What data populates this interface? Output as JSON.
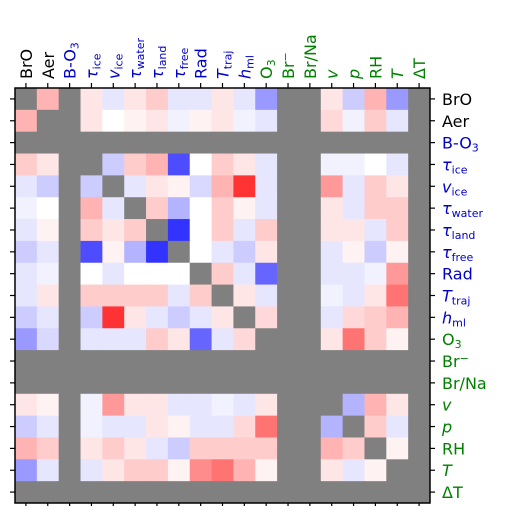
{
  "chart_data": {
    "type": "heatmap",
    "title": "",
    "labels": [
      {
        "text": "BrO",
        "sub": "",
        "color": "#000000"
      },
      {
        "text": "Aer",
        "sub": "",
        "color": "#000000"
      },
      {
        "text": "B-O",
        "sub": "3",
        "color": "#0000cc"
      },
      {
        "text": "τ",
        "sub": "ice",
        "color": "#0000cc"
      },
      {
        "text": "v",
        "sub": "ice",
        "color": "#0000cc"
      },
      {
        "text": "τ",
        "sub": "water",
        "color": "#0000cc"
      },
      {
        "text": "τ",
        "sub": "land",
        "color": "#0000cc"
      },
      {
        "text": "τ",
        "sub": "free",
        "color": "#0000cc"
      },
      {
        "text": "Rad",
        "sub": "",
        "color": "#0000cc"
      },
      {
        "text": "T",
        "sub": "traj",
        "color": "#0000cc"
      },
      {
        "text": "h",
        "sub": "ml",
        "color": "#0000cc"
      },
      {
        "text": "O",
        "sub": "3",
        "color": "#008000"
      },
      {
        "text": "Br",
        "sub": "−",
        "color": "#008000"
      },
      {
        "text": "Br/Na",
        "sub": "",
        "color": "#008000"
      },
      {
        "text": "v",
        "sub": "",
        "color": "#008000"
      },
      {
        "text": "p",
        "sub": "",
        "color": "#008000"
      },
      {
        "text": "RH",
        "sub": "",
        "color": "#008000"
      },
      {
        "text": "T",
        "sub": "",
        "color": "#008000"
      },
      {
        "text": "ΔT",
        "sub": "",
        "color": "#008000"
      }
    ],
    "color_scale": {
      "min": -1,
      "max": 1,
      "negative": "#0000ff",
      "zero": "#ffffff",
      "positive": "#ff0000",
      "missing": "#808080"
    },
    "matrix": [
      [
        null,
        0.3,
        null,
        0.1,
        -0.1,
        0.1,
        0.2,
        -0.1,
        -0.1,
        0.1,
        -0.1,
        -0.4,
        null,
        null,
        0.1,
        -0.2,
        0.3,
        -0.4,
        null
      ],
      [
        0.3,
        null,
        null,
        0.1,
        0.0,
        0.05,
        0.1,
        -0.05,
        0.05,
        0.1,
        -0.05,
        -0.1,
        null,
        null,
        0.15,
        -0.05,
        0.2,
        -0.1,
        null
      ],
      [
        null,
        null,
        null,
        null,
        null,
        null,
        null,
        null,
        null,
        null,
        null,
        null,
        null,
        null,
        null,
        null,
        null,
        null,
        null
      ],
      [
        0.2,
        0.1,
        null,
        null,
        -0.2,
        0.2,
        0.3,
        -0.7,
        0.0,
        0.2,
        0.1,
        -0.1,
        null,
        null,
        -0.05,
        -0.05,
        0.0,
        -0.1,
        null
      ],
      [
        -0.1,
        -0.2,
        null,
        -0.2,
        null,
        -0.1,
        0.1,
        0.05,
        -0.15,
        0.3,
        0.8,
        -0.1,
        null,
        null,
        0.4,
        -0.1,
        0.2,
        0.1,
        null
      ],
      [
        -0.05,
        0.0,
        null,
        0.3,
        -0.1,
        null,
        0.2,
        -0.3,
        0.0,
        0.2,
        0.05,
        -0.1,
        null,
        null,
        0.1,
        -0.1,
        0.2,
        0.2,
        null
      ],
      [
        -0.1,
        0.05,
        null,
        0.2,
        0.1,
        0.2,
        null,
        -0.8,
        0.0,
        0.2,
        -0.1,
        0.2,
        null,
        null,
        0.1,
        0.1,
        -0.1,
        0.2,
        null
      ],
      [
        -0.2,
        -0.1,
        null,
        -0.7,
        0.05,
        -0.3,
        -0.8,
        null,
        0.0,
        -0.1,
        -0.2,
        0.1,
        null,
        null,
        -0.1,
        0.05,
        -0.2,
        0.05,
        null
      ],
      [
        -0.1,
        -0.05,
        null,
        0.0,
        -0.1,
        0.0,
        0.0,
        0.0,
        null,
        0.2,
        -0.1,
        -0.6,
        null,
        null,
        -0.1,
        -0.1,
        -0.05,
        0.4,
        null
      ],
      [
        -0.1,
        0.1,
        null,
        0.2,
        0.2,
        0.2,
        0.2,
        -0.1,
        0.2,
        null,
        0.1,
        -0.1,
        null,
        null,
        -0.05,
        -0.1,
        0.1,
        0.55,
        null
      ],
      [
        -0.2,
        -0.1,
        null,
        -0.2,
        0.8,
        0.1,
        -0.1,
        -0.2,
        -0.1,
        0.1,
        null,
        0.15,
        null,
        null,
        -0.1,
        0.15,
        0.2,
        0.3,
        null
      ],
      [
        -0.4,
        -0.15,
        null,
        -0.1,
        -0.1,
        -0.1,
        0.2,
        0.1,
        -0.6,
        -0.1,
        0.15,
        null,
        null,
        null,
        0.1,
        0.55,
        0.2,
        0.05,
        null
      ],
      [
        null,
        null,
        null,
        null,
        null,
        null,
        null,
        null,
        null,
        null,
        null,
        null,
        null,
        null,
        null,
        null,
        null,
        null,
        null
      ],
      [
        null,
        null,
        null,
        null,
        null,
        null,
        null,
        null,
        null,
        null,
        null,
        null,
        null,
        null,
        null,
        null,
        null,
        null,
        null
      ],
      [
        0.1,
        0.05,
        null,
        -0.05,
        0.4,
        0.1,
        0.1,
        -0.1,
        -0.1,
        -0.05,
        -0.1,
        0.1,
        null,
        null,
        null,
        -0.3,
        0.3,
        0.1,
        null
      ],
      [
        -0.2,
        -0.1,
        null,
        -0.05,
        -0.1,
        -0.1,
        0.1,
        0.05,
        -0.1,
        -0.1,
        0.15,
        0.55,
        null,
        null,
        -0.3,
        null,
        0.2,
        -0.1,
        null
      ],
      [
        0.3,
        0.2,
        null,
        0.1,
        0.2,
        0.1,
        -0.1,
        -0.2,
        0.2,
        0.2,
        0.2,
        0.2,
        null,
        null,
        0.3,
        0.2,
        null,
        0.05,
        null
      ],
      [
        -0.4,
        -0.1,
        null,
        -0.1,
        0.1,
        0.2,
        0.2,
        0.05,
        0.45,
        0.55,
        0.3,
        0.05,
        null,
        null,
        0.1,
        -0.1,
        0.05,
        null,
        null
      ],
      [
        null,
        null,
        null,
        null,
        null,
        null,
        null,
        null,
        null,
        null,
        null,
        null,
        null,
        null,
        null,
        null,
        null,
        null,
        null
      ]
    ]
  }
}
